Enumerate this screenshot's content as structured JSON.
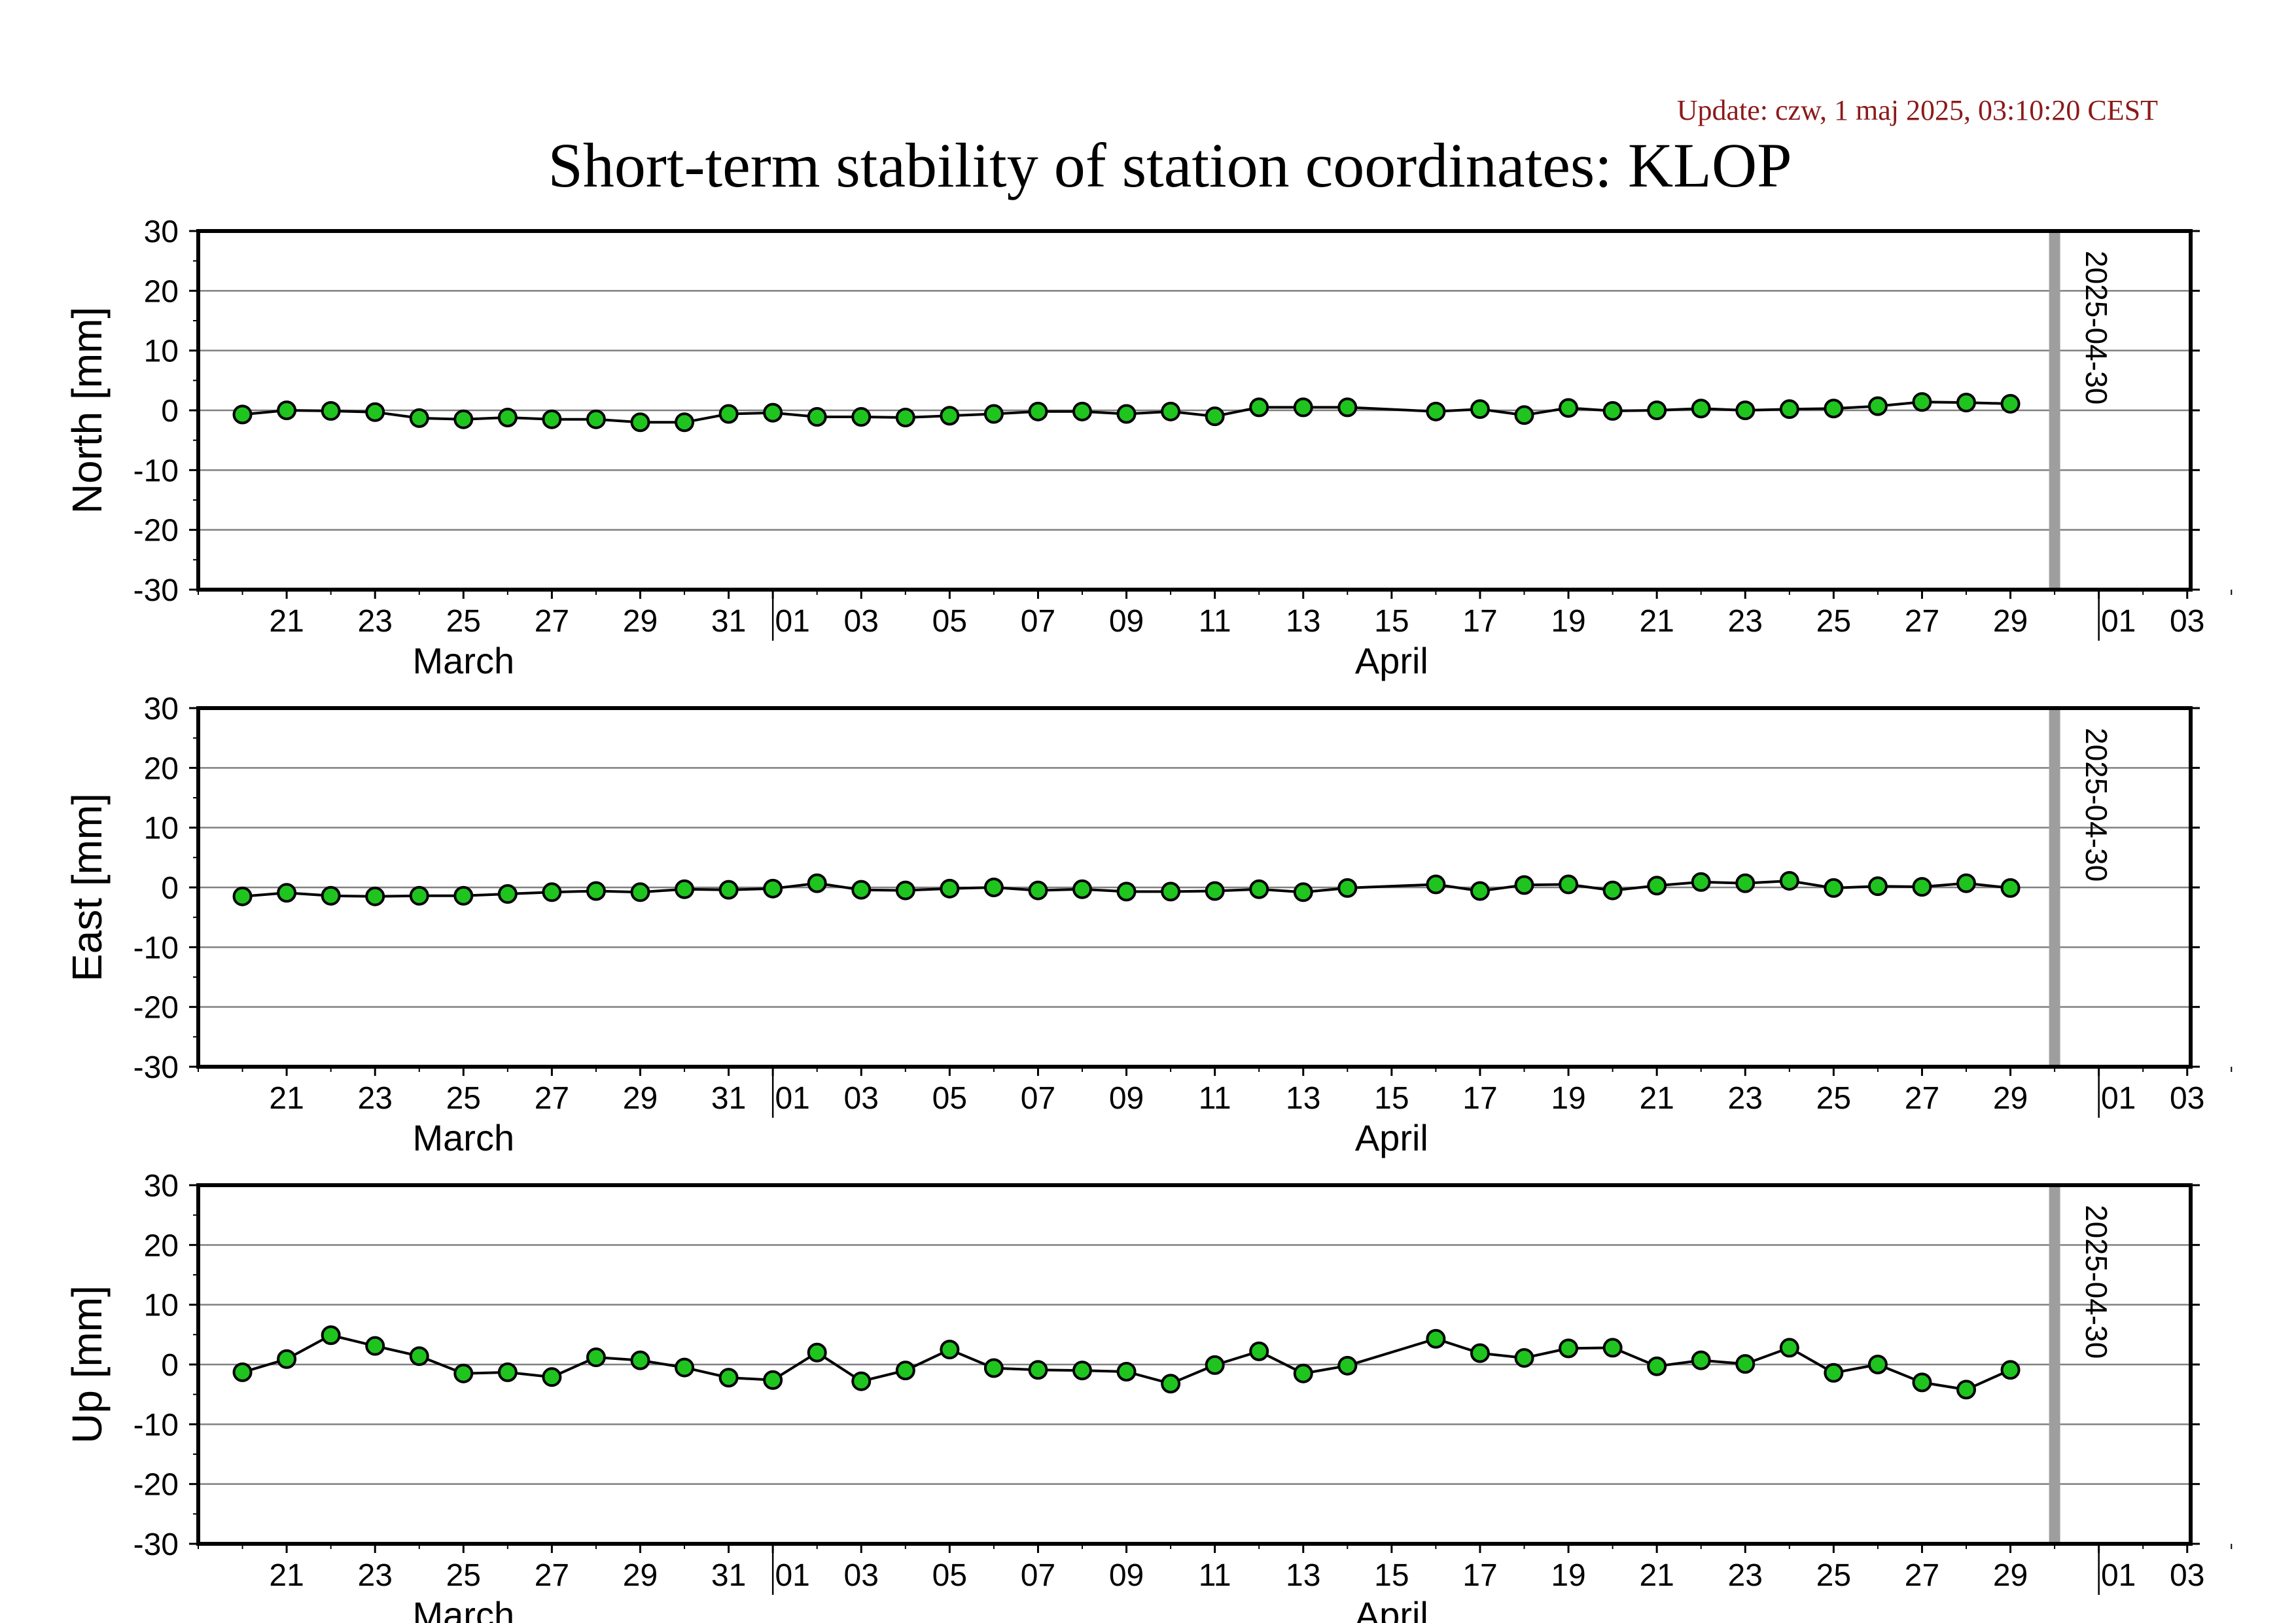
{
  "update_text": "Update: czw, 1 maj 2025, 03:10:20 CEST",
  "title": "Short-term stability of station coordinates: KLOP",
  "colors": {
    "marker_fill": "#1fc41f",
    "line": "#000000",
    "grid": "#808080",
    "marker_line": "#9e9e9e",
    "update_text": "#8b1a1a"
  },
  "chart_data": [
    {
      "type": "line",
      "ylabel": "North [mm]",
      "ylim": [
        -30,
        30
      ],
      "yticks": [
        30,
        20,
        10,
        0,
        -10,
        -20,
        -30
      ],
      "xlim": [
        "2025-03-19",
        "2025-05-04"
      ],
      "xtick_labels": [
        "21",
        "23",
        "25",
        "27",
        "29",
        "31",
        "01",
        "03",
        "05",
        "07",
        "09",
        "11",
        "13",
        "15",
        "17",
        "19",
        "21",
        "23",
        "25",
        "27",
        "29",
        "01",
        "03"
      ],
      "month_labels": [
        "March",
        "April"
      ],
      "grid": "horizontal",
      "marker_line": {
        "date": "2025-04-30",
        "label": "2025-04-30"
      },
      "x": [
        "2025-03-20",
        "2025-03-21",
        "2025-03-22",
        "2025-03-23",
        "2025-03-24",
        "2025-03-25",
        "2025-03-26",
        "2025-03-27",
        "2025-03-28",
        "2025-03-29",
        "2025-03-30",
        "2025-03-31",
        "2025-04-01",
        "2025-04-02",
        "2025-04-03",
        "2025-04-04",
        "2025-04-05",
        "2025-04-06",
        "2025-04-07",
        "2025-04-08",
        "2025-04-09",
        "2025-04-10",
        "2025-04-11",
        "2025-04-12",
        "2025-04-13",
        "2025-04-14",
        "2025-04-16",
        "2025-04-17",
        "2025-04-18",
        "2025-04-19",
        "2025-04-20",
        "2025-04-21",
        "2025-04-22",
        "2025-04-23",
        "2025-04-24",
        "2025-04-25",
        "2025-04-26",
        "2025-04-27",
        "2025-04-28",
        "2025-04-29"
      ],
      "values": [
        -0.7,
        0,
        -0.1,
        -0.3,
        -1.3,
        -1.5,
        -1.2,
        -1.5,
        -1.5,
        -2,
        -2,
        -0.6,
        -0.4,
        -1.1,
        -1.1,
        -1.2,
        -0.9,
        -0.6,
        -0.2,
        -0.2,
        -0.6,
        -0.2,
        -1,
        0.5,
        0.5,
        0.5,
        -0.2,
        0.2,
        -0.8,
        0.4,
        -0.1,
        0,
        0.3,
        0,
        0.2,
        0.3,
        0.7,
        1.4,
        1.3,
        1.1
      ]
    },
    {
      "type": "line",
      "ylabel": "East [mm]",
      "ylim": [
        -30,
        30
      ],
      "yticks": [
        30,
        20,
        10,
        0,
        -10,
        -20,
        -30
      ],
      "xlim": [
        "2025-03-19",
        "2025-05-04"
      ],
      "xtick_labels": [
        "21",
        "23",
        "25",
        "27",
        "29",
        "31",
        "01",
        "03",
        "05",
        "07",
        "09",
        "11",
        "13",
        "15",
        "17",
        "19",
        "21",
        "23",
        "25",
        "27",
        "29",
        "01",
        "03"
      ],
      "month_labels": [
        "March",
        "April"
      ],
      "grid": "horizontal",
      "marker_line": {
        "date": "2025-04-30",
        "label": "2025-04-30"
      },
      "x": [
        "2025-03-20",
        "2025-03-21",
        "2025-03-22",
        "2025-03-23",
        "2025-03-24",
        "2025-03-25",
        "2025-03-26",
        "2025-03-27",
        "2025-03-28",
        "2025-03-29",
        "2025-03-30",
        "2025-03-31",
        "2025-04-01",
        "2025-04-02",
        "2025-04-03",
        "2025-04-04",
        "2025-04-05",
        "2025-04-06",
        "2025-04-07",
        "2025-04-08",
        "2025-04-09",
        "2025-04-10",
        "2025-04-11",
        "2025-04-12",
        "2025-04-13",
        "2025-04-14",
        "2025-04-16",
        "2025-04-17",
        "2025-04-18",
        "2025-04-19",
        "2025-04-20",
        "2025-04-21",
        "2025-04-22",
        "2025-04-23",
        "2025-04-24",
        "2025-04-25",
        "2025-04-26",
        "2025-04-27",
        "2025-04-28",
        "2025-04-29"
      ],
      "values": [
        -1.5,
        -0.9,
        -1.4,
        -1.5,
        -1.4,
        -1.4,
        -1.1,
        -0.8,
        -0.6,
        -0.8,
        -0.3,
        -0.4,
        -0.2,
        0.7,
        -0.4,
        -0.5,
        -0.2,
        0,
        -0.5,
        -0.3,
        -0.7,
        -0.7,
        -0.6,
        -0.3,
        -0.8,
        -0.1,
        0.5,
        -0.6,
        0.4,
        0.5,
        -0.5,
        0.3,
        0.9,
        0.7,
        1.1,
        -0.1,
        0.2,
        0.1,
        0.7,
        -0.1
      ]
    },
    {
      "type": "line",
      "ylabel": "Up [mm]",
      "ylim": [
        -30,
        30
      ],
      "yticks": [
        30,
        20,
        10,
        0,
        -10,
        -20,
        -30
      ],
      "xlim": [
        "2025-03-19",
        "2025-05-04"
      ],
      "xtick_labels": [
        "21",
        "23",
        "25",
        "27",
        "29",
        "31",
        "01",
        "03",
        "05",
        "07",
        "09",
        "11",
        "13",
        "15",
        "17",
        "19",
        "21",
        "23",
        "25",
        "27",
        "29",
        "01",
        "03"
      ],
      "month_labels": [
        "March",
        "April"
      ],
      "grid": "horizontal",
      "marker_line": {
        "date": "2025-04-30",
        "label": "2025-04-30"
      },
      "x": [
        "2025-03-20",
        "2025-03-21",
        "2025-03-22",
        "2025-03-23",
        "2025-03-24",
        "2025-03-25",
        "2025-03-26",
        "2025-03-27",
        "2025-03-28",
        "2025-03-29",
        "2025-03-30",
        "2025-03-31",
        "2025-04-01",
        "2025-04-02",
        "2025-04-03",
        "2025-04-04",
        "2025-04-05",
        "2025-04-06",
        "2025-04-07",
        "2025-04-08",
        "2025-04-09",
        "2025-04-10",
        "2025-04-11",
        "2025-04-12",
        "2025-04-13",
        "2025-04-14",
        "2025-04-16",
        "2025-04-17",
        "2025-04-18",
        "2025-04-19",
        "2025-04-20",
        "2025-04-21",
        "2025-04-22",
        "2025-04-23",
        "2025-04-24",
        "2025-04-25",
        "2025-04-26",
        "2025-04-27",
        "2025-04-28",
        "2025-04-29"
      ],
      "values": [
        -1.3,
        0.9,
        4.9,
        3.1,
        1.4,
        -1.5,
        -1.3,
        -2.1,
        1.2,
        0.7,
        -0.5,
        -2.2,
        -2.6,
        2,
        -2.8,
        -1,
        2.5,
        -0.6,
        -0.9,
        -1,
        -1.2,
        -3.2,
        -0.1,
        2.2,
        -1.5,
        -0.2,
        4.3,
        1.9,
        1.1,
        2.7,
        2.8,
        -0.3,
        0.7,
        0.1,
        2.8,
        -1.4,
        0,
        -3,
        -4.2,
        -0.9
      ]
    }
  ]
}
